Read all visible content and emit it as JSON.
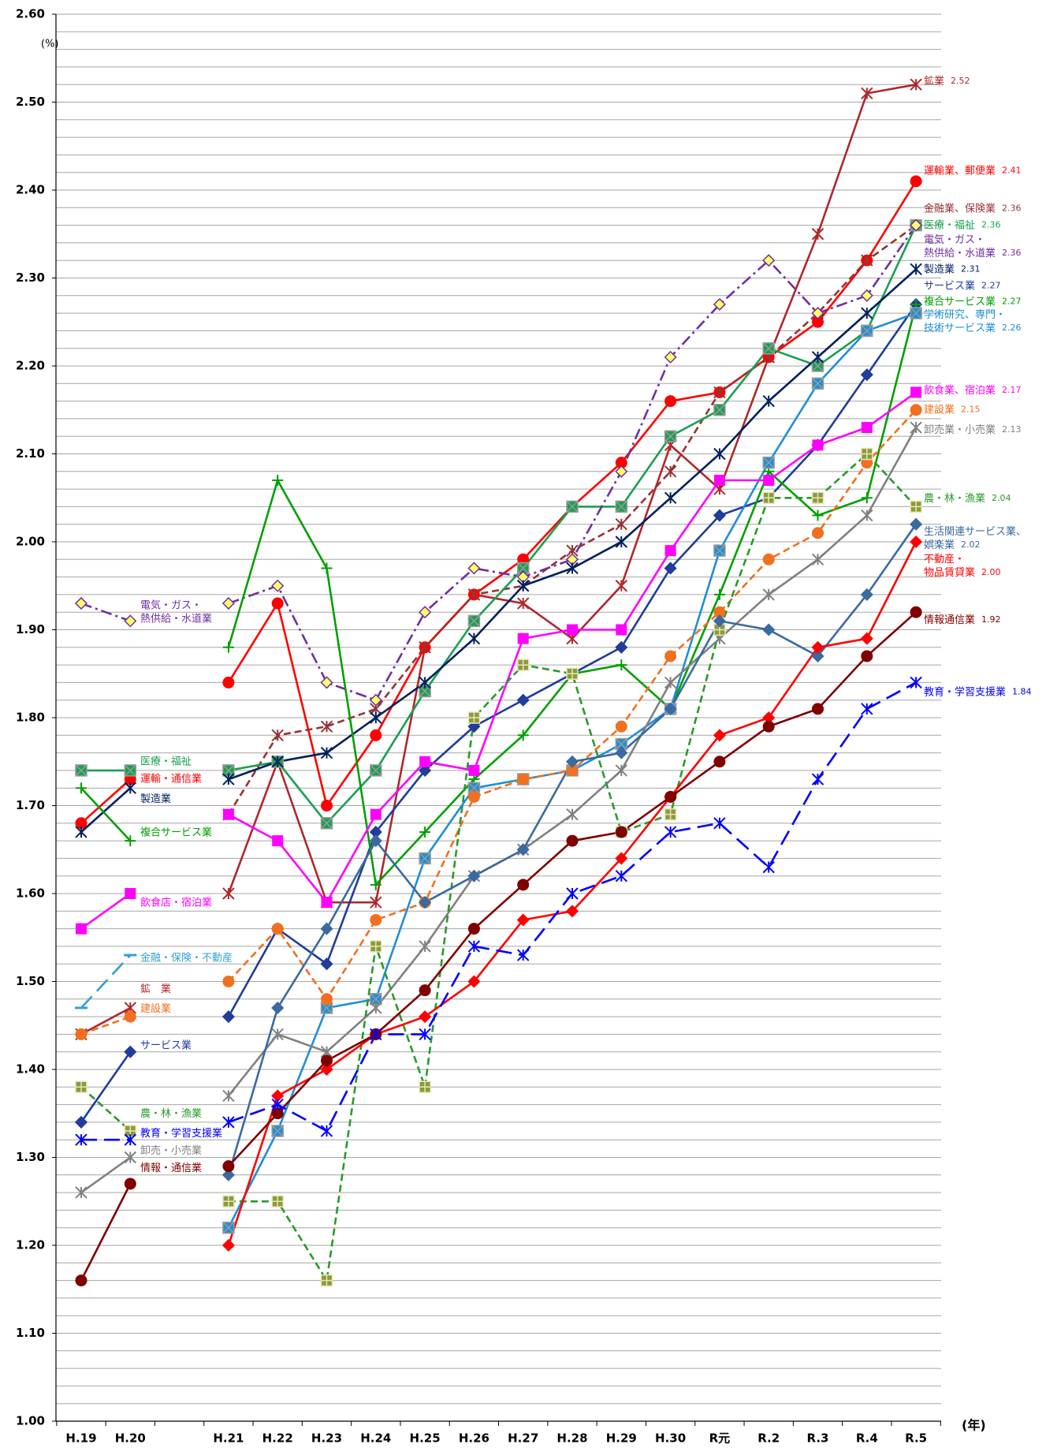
{
  "chart_data": {
    "type": "line",
    "y_unit": "(%)",
    "x_label": "(年)",
    "categories": [
      "H.19",
      "H.20",
      null,
      "H.21",
      "H.22",
      "H.23",
      "H.24",
      "H.25",
      "H.26",
      "H.27",
      "H.28",
      "H.29",
      "H.30",
      "R元",
      "R.2",
      "R.3",
      "R.4",
      "R.5"
    ],
    "ylim": [
      1.0,
      2.6
    ],
    "yticks": [
      {
        "value": 1.0,
        "label": "1.00"
      },
      {
        "value": 1.1,
        "label": "1.10"
      },
      {
        "value": 1.2,
        "label": "1.20"
      },
      {
        "value": 1.3,
        "label": "1.30"
      },
      {
        "value": 1.4,
        "label": "1.40"
      },
      {
        "value": 1.5,
        "label": "1.50"
      },
      {
        "value": 1.6,
        "label": "1.60"
      },
      {
        "value": 1.7,
        "label": "1.70"
      },
      {
        "value": 1.8,
        "label": "1.80"
      },
      {
        "value": 1.9,
        "label": "1.90"
      },
      {
        "value": 2.0,
        "label": "2.00"
      },
      {
        "value": 2.1,
        "label": "2.10"
      },
      {
        "value": 2.2,
        "label": "2.20"
      },
      {
        "value": 2.3,
        "label": "2.30"
      },
      {
        "value": 2.4,
        "label": "2.40"
      },
      {
        "value": 2.5,
        "label": "2.50"
      },
      {
        "value": 2.6,
        "label": "2.60"
      }
    ],
    "ygrid": [
      1.0,
      1.02,
      1.04,
      1.06,
      1.08,
      1.1,
      1.12,
      1.14,
      1.16,
      1.18,
      1.2,
      1.22,
      1.24,
      1.26,
      1.28,
      1.3,
      1.32,
      1.34,
      1.36,
      1.38,
      1.4,
      1.42,
      1.44,
      1.46,
      1.48,
      1.5,
      1.52,
      1.54,
      1.56,
      1.58,
      1.6,
      1.62,
      1.64,
      1.66,
      1.68,
      1.7,
      1.72,
      1.74,
      1.76,
      1.78,
      1.8,
      1.82,
      1.84,
      1.86,
      1.88,
      1.9,
      1.92,
      1.94,
      1.96,
      1.98,
      2.0,
      2.02,
      2.04,
      2.06,
      2.08,
      2.1,
      2.12,
      2.14,
      2.16,
      2.18,
      2.2,
      2.22,
      2.24,
      2.26,
      2.28,
      2.3,
      2.32,
      2.34,
      2.36,
      2.38,
      2.4,
      2.42,
      2.44,
      2.46,
      2.48,
      2.5,
      2.52,
      2.54,
      2.56,
      2.58,
      2.6
    ],
    "grid": true,
    "series": [
      {
        "name": "鉱業",
        "left_label": "鉱　業",
        "color": "#b0282a",
        "marker": "asterisk",
        "dash": "solid",
        "values": [
          1.44,
          1.47,
          null,
          1.6,
          1.75,
          1.59,
          1.59,
          1.88,
          1.94,
          1.93,
          1.89,
          1.95,
          2.11,
          2.06,
          2.21,
          2.35,
          2.51,
          2.52
        ],
        "value_labels": [
          null,
          null,
          null,
          null,
          null,
          null,
          null,
          null,
          null,
          null,
          null,
          null,
          null,
          null,
          null,
          null,
          null,
          "2.52"
        ]
      },
      {
        "name": "運輸業、郵便業",
        "left_label": "運輸・通信業",
        "color": "#ff0000",
        "marker": "circle",
        "dash": "solid",
        "values": [
          1.68,
          1.73,
          null,
          1.84,
          1.93,
          1.7,
          1.78,
          1.88,
          1.94,
          1.98,
          2.04,
          2.09,
          2.16,
          2.17,
          2.21,
          2.25,
          2.32,
          2.41
        ],
        "value_labels": [
          null,
          null,
          null,
          null,
          null,
          null,
          null,
          null,
          null,
          null,
          null,
          null,
          null,
          null,
          null,
          null,
          null,
          "2.41"
        ]
      },
      {
        "name": "金融業、保険業",
        "color": "#993333",
        "marker": "asterisk",
        "dash": "dashed",
        "values": [
          null,
          null,
          null,
          1.69,
          1.78,
          1.79,
          1.81,
          1.88,
          1.94,
          1.95,
          1.99,
          2.02,
          2.08,
          2.17,
          2.21,
          2.26,
          2.32,
          2.36
        ],
        "value_labels": [
          null,
          null,
          null,
          null,
          null,
          null,
          null,
          null,
          null,
          null,
          null,
          null,
          null,
          null,
          null,
          null,
          null,
          "2.36"
        ]
      },
      {
        "name": "医療・福祉",
        "left_label": "医療・福祉",
        "color": "#1aa050",
        "marker": "square-x",
        "dash": "solid",
        "values": [
          1.74,
          1.74,
          null,
          1.74,
          1.75,
          1.68,
          1.74,
          1.83,
          1.91,
          1.97,
          2.04,
          2.04,
          2.12,
          2.15,
          2.22,
          2.2,
          2.24,
          2.36
        ],
        "value_labels": [
          null,
          null,
          null,
          null,
          null,
          null,
          null,
          null,
          null,
          null,
          null,
          null,
          null,
          null,
          null,
          null,
          null,
          "2.36"
        ]
      },
      {
        "name": "電気・ガス・熱供給・水道業",
        "left_label": "電気・ガス・熱供給・水道業",
        "color": "#7030a0",
        "marker": "diamond",
        "marker_fill": "#ffff66",
        "dash": "dashdot",
        "values": [
          1.93,
          1.91,
          null,
          1.93,
          1.95,
          1.84,
          1.82,
          1.92,
          1.97,
          1.96,
          1.98,
          2.08,
          2.21,
          2.27,
          2.32,
          2.26,
          2.28,
          2.36
        ],
        "value_labels": [
          null,
          null,
          null,
          null,
          null,
          null,
          null,
          null,
          null,
          null,
          null,
          null,
          null,
          null,
          null,
          null,
          null,
          "2.36"
        ]
      },
      {
        "name": "製造業",
        "left_label": "製造業",
        "color": "#002060",
        "marker": "asterisk",
        "dash": "solid",
        "values": [
          1.67,
          1.72,
          null,
          1.73,
          1.75,
          1.76,
          1.8,
          1.84,
          1.89,
          1.95,
          1.97,
          2.0,
          2.05,
          2.1,
          2.16,
          2.21,
          2.26,
          2.31
        ],
        "value_labels": [
          null,
          null,
          null,
          null,
          null,
          null,
          null,
          null,
          null,
          null,
          null,
          null,
          null,
          null,
          null,
          null,
          null,
          "2.31"
        ]
      },
      {
        "name": "サービス業",
        "left_label": "サービス業",
        "color": "#1f3d99",
        "marker": "diamond",
        "dash": "solid",
        "values": [
          1.34,
          1.42,
          null,
          1.46,
          1.56,
          1.52,
          1.67,
          1.74,
          1.79,
          1.82,
          1.85,
          1.88,
          1.97,
          2.03,
          2.05,
          2.11,
          2.19,
          2.27
        ],
        "value_labels": [
          null,
          null,
          null,
          null,
          null,
          null,
          null,
          null,
          null,
          null,
          null,
          null,
          null,
          null,
          null,
          null,
          null,
          "2.27"
        ]
      },
      {
        "name": "複合サービス業",
        "left_label": "複合サービス業",
        "color": "#00a000",
        "marker": "plus",
        "dash": "solid",
        "values": [
          1.72,
          1.66,
          null,
          1.88,
          2.07,
          1.97,
          1.61,
          1.67,
          1.73,
          1.78,
          1.85,
          1.86,
          1.81,
          1.94,
          2.08,
          2.03,
          2.05,
          2.27
        ],
        "value_labels": [
          null,
          null,
          null,
          null,
          null,
          null,
          null,
          null,
          null,
          null,
          null,
          null,
          null,
          null,
          null,
          null,
          null,
          "2.27"
        ]
      },
      {
        "name": "学術研究、専門・技術サービス業",
        "color": "#1f8fd6",
        "marker": "square-x",
        "dash": "solid",
        "values": [
          null,
          null,
          null,
          1.22,
          1.33,
          1.47,
          1.48,
          1.64,
          1.72,
          1.73,
          1.74,
          1.77,
          1.81,
          1.99,
          2.09,
          2.18,
          2.24,
          2.26
        ],
        "value_labels": [
          null,
          null,
          null,
          null,
          null,
          null,
          null,
          null,
          null,
          null,
          null,
          null,
          null,
          null,
          null,
          null,
          null,
          "2.26"
        ]
      },
      {
        "name": "飲食業、宿泊業",
        "left_label": "飲食店・宿泊業",
        "color": "#ff00ff",
        "marker": "square",
        "dash": "solid",
        "values": [
          1.56,
          1.6,
          null,
          1.69,
          1.66,
          1.59,
          1.69,
          1.75,
          1.74,
          1.89,
          1.9,
          1.9,
          1.99,
          2.07,
          2.07,
          2.11,
          2.13,
          2.17
        ],
        "value_labels": [
          null,
          null,
          null,
          null,
          null,
          null,
          null,
          null,
          null,
          null,
          null,
          null,
          null,
          null,
          null,
          null,
          null,
          "2.17"
        ]
      },
      {
        "name": "建設業",
        "left_label": "建設業",
        "color": "#f07020",
        "marker": "circle",
        "dash": "dashed",
        "values": [
          1.44,
          1.46,
          null,
          1.5,
          1.56,
          1.48,
          1.57,
          1.59,
          1.71,
          1.73,
          1.74,
          1.79,
          1.87,
          1.92,
          1.98,
          2.01,
          2.09,
          2.15
        ],
        "value_labels": [
          null,
          null,
          null,
          null,
          null,
          null,
          null,
          null,
          null,
          null,
          null,
          null,
          null,
          null,
          null,
          null,
          null,
          "2.15"
        ]
      },
      {
        "name": "卸売業・小売業",
        "left_label": "卸売・小売業",
        "color": "#808080",
        "marker": "asterisk",
        "dash": "solid",
        "values": [
          1.26,
          1.3,
          null,
          1.37,
          1.44,
          1.42,
          1.47,
          1.54,
          1.62,
          1.65,
          1.69,
          1.74,
          1.84,
          1.89,
          1.94,
          1.98,
          2.03,
          2.13
        ],
        "value_labels": [
          null,
          null,
          null,
          null,
          null,
          null,
          null,
          null,
          null,
          null,
          null,
          null,
          null,
          null,
          null,
          null,
          null,
          "2.13"
        ]
      },
      {
        "name": "農・林・漁業",
        "left_label": "農・林・漁業",
        "color": "#2a9a2a",
        "marker": "square-plus",
        "marker_fill": "#8c9a3a",
        "dash": "dashed",
        "values": [
          1.38,
          1.33,
          null,
          1.25,
          1.25,
          1.16,
          1.54,
          1.38,
          1.8,
          1.86,
          1.85,
          1.67,
          1.69,
          1.9,
          2.05,
          2.05,
          2.1,
          2.04
        ],
        "value_labels": [
          null,
          null,
          null,
          null,
          null,
          null,
          null,
          null,
          null,
          null,
          null,
          null,
          null,
          null,
          null,
          null,
          null,
          "2.04"
        ]
      },
      {
        "name": "生活関連サービス業、娯楽業",
        "color": "#3a6aa0",
        "marker": "diamond",
        "dash": "solid",
        "values": [
          null,
          null,
          null,
          1.28,
          1.47,
          1.56,
          1.66,
          1.59,
          1.62,
          1.65,
          1.75,
          1.76,
          1.81,
          1.91,
          1.9,
          1.87,
          1.94,
          2.02
        ],
        "value_labels": [
          null,
          null,
          null,
          null,
          null,
          null,
          null,
          null,
          null,
          null,
          null,
          null,
          null,
          null,
          null,
          null,
          null,
          "2.02"
        ]
      },
      {
        "name": "不動産・物品賃貸業",
        "color": "#ff0000",
        "marker": "diamond",
        "dash": "solid",
        "values": [
          null,
          null,
          null,
          1.2,
          1.37,
          1.4,
          1.44,
          1.46,
          1.5,
          1.57,
          1.58,
          1.64,
          1.71,
          1.78,
          1.8,
          1.88,
          1.89,
          2.0
        ],
        "value_labels": [
          null,
          null,
          null,
          null,
          null,
          null,
          null,
          null,
          null,
          null,
          null,
          null,
          null,
          null,
          null,
          null,
          null,
          "2.00"
        ]
      },
      {
        "name": "情報通信業",
        "left_label": "情報・通信業",
        "color": "#800000",
        "marker": "circle",
        "dash": "solid",
        "values": [
          1.16,
          1.27,
          null,
          1.29,
          1.35,
          1.41,
          1.44,
          1.49,
          1.56,
          1.61,
          1.66,
          1.67,
          1.71,
          1.75,
          1.79,
          1.81,
          1.87,
          1.92
        ],
        "value_labels": [
          null,
          null,
          null,
          null,
          null,
          null,
          null,
          null,
          null,
          null,
          null,
          null,
          null,
          null,
          null,
          null,
          null,
          "1.92"
        ]
      },
      {
        "name": "教育・学習支援業",
        "left_label": "教育・学習支援業",
        "color": "#0000ff",
        "marker": "asterisk",
        "dash": "longdash",
        "values": [
          1.32,
          1.32,
          null,
          1.34,
          1.36,
          1.33,
          1.44,
          1.44,
          1.54,
          1.53,
          1.6,
          1.62,
          1.67,
          1.68,
          1.63,
          1.73,
          1.81,
          1.84
        ],
        "value_labels": [
          null,
          null,
          null,
          null,
          null,
          null,
          null,
          null,
          null,
          null,
          null,
          null,
          null,
          null,
          null,
          null,
          null,
          "1.84"
        ]
      },
      {
        "name": "金融・保険・不動産",
        "color": "#33a0d0",
        "marker": "dash",
        "dash": "longdash",
        "values": [
          1.47,
          1.53,
          null,
          null,
          null,
          null,
          null,
          null,
          null,
          null,
          null,
          null,
          null,
          null,
          null,
          null,
          null,
          null
        ]
      }
    ]
  }
}
